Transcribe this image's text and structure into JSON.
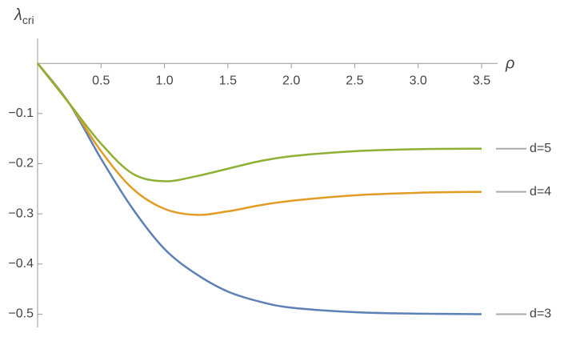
{
  "chart_data": {
    "type": "line",
    "x_label": "ρ",
    "y_label": "λ",
    "y_label_subscript": "cri",
    "x": [
      0,
      0.25,
      0.5,
      0.75,
      1.0,
      1.25,
      1.5,
      1.75,
      2.0,
      2.5,
      3.0,
      3.5
    ],
    "series": [
      {
        "name": "d=3",
        "color": "#5e81b5",
        "values": [
          0,
          -0.08,
          -0.19,
          -0.29,
          -0.37,
          -0.42,
          -0.455,
          -0.475,
          -0.487,
          -0.496,
          -0.499,
          -0.5
        ]
      },
      {
        "name": "d=4",
        "color": "#e19c24",
        "values": [
          0,
          -0.08,
          -0.175,
          -0.25,
          -0.29,
          -0.302,
          -0.295,
          -0.283,
          -0.274,
          -0.263,
          -0.258,
          -0.256
        ]
      },
      {
        "name": "d=5",
        "color": "#8fb032",
        "values": [
          0,
          -0.08,
          -0.16,
          -0.22,
          -0.235,
          -0.225,
          -0.21,
          -0.195,
          -0.185,
          -0.175,
          -0.171,
          -0.17
        ]
      }
    ],
    "xlim": [
      0,
      3.5
    ],
    "ylim": [
      -0.52,
      0.045
    ],
    "xticks": [
      0.5,
      {
        "value": 1,
        "label": "1.0"
      },
      1.5,
      {
        "value": 2,
        "label": "2.0"
      },
      2.5,
      {
        "value": 3,
        "label": "3.0"
      },
      3.5
    ],
    "yticks": [
      {
        "value": -0.1,
        "label": "−0.1"
      },
      {
        "value": -0.2,
        "label": "−0.2"
      },
      {
        "value": -0.3,
        "label": "−0.3"
      },
      {
        "value": -0.4,
        "label": "−0.4"
      },
      {
        "value": -0.5,
        "label": "−0.5"
      }
    ]
  }
}
